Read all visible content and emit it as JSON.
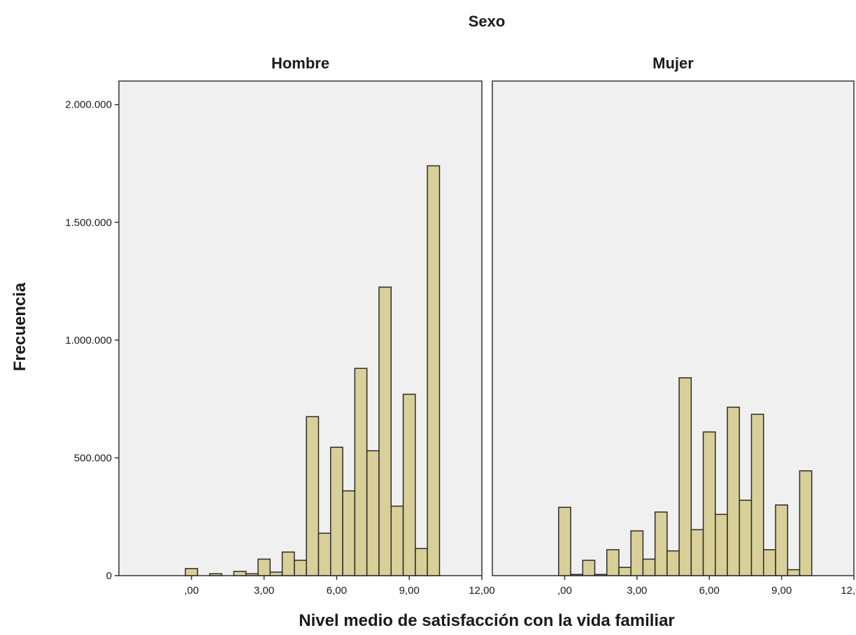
{
  "chart_data": {
    "type": "bar",
    "facet_title": "Sexo",
    "xlabel": "Nivel medio de satisfacción con la vida familiar",
    "ylabel": "Frecuencia",
    "xlim": [
      -3.0,
      12.0
    ],
    "ylim": [
      0,
      2100000
    ],
    "x_ticks": [
      0,
      3,
      6,
      9,
      12
    ],
    "x_tick_labels": [
      ",00",
      "3,00",
      "6,00",
      "9,00",
      "12,00"
    ],
    "y_ticks": [
      0,
      500000,
      1000000,
      1500000,
      2000000
    ],
    "y_tick_labels": [
      "0",
      "500.000",
      "1.000.000",
      "1.500.000",
      "2.000.000"
    ],
    "bar_color": "#d9cf98",
    "bin_width": 0.5,
    "bins_start": [
      -0.25,
      0.25,
      0.75,
      1.25,
      1.75,
      2.25,
      2.75,
      3.25,
      3.75,
      4.25,
      4.75,
      5.25,
      5.75,
      6.25,
      6.75,
      7.25,
      7.75,
      8.25,
      8.75,
      9.25,
      9.75
    ],
    "panels": [
      {
        "name": "Hombre",
        "values": [
          30000,
          0,
          8000,
          0,
          18000,
          8000,
          70000,
          15000,
          100000,
          65000,
          675000,
          180000,
          545000,
          360000,
          880000,
          530000,
          1225000,
          295000,
          770000,
          115000,
          1740000
        ]
      },
      {
        "name": "Mujer",
        "values": [
          290000,
          5000,
          65000,
          5000,
          110000,
          35000,
          190000,
          70000,
          270000,
          105000,
          840000,
          195000,
          610000,
          260000,
          715000,
          320000,
          685000,
          110000,
          300000,
          25000,
          445000
        ]
      }
    ]
  }
}
